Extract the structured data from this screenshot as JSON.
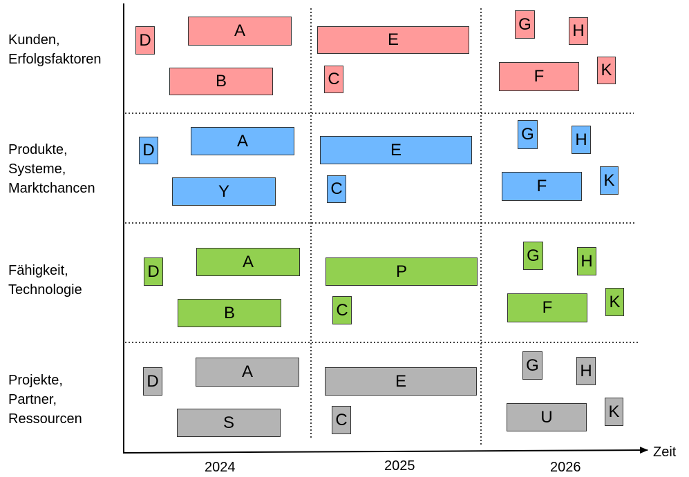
{
  "lanes": [
    {
      "label_lines": [
        "Kunden,",
        "Erfolgsfaktoren"
      ],
      "color": "#ff9a9a"
    },
    {
      "label_lines": [
        "Produkte,",
        "Systeme,",
        "Marktchancen"
      ],
      "color": "#6fb8ff"
    },
    {
      "label_lines": [
        "Fähigkeit,",
        "Technologie"
      ],
      "color": "#92d050"
    },
    {
      "label_lines": [
        "Projekte,",
        "Partner,",
        "Ressourcen"
      ],
      "color": "#b4b4b4"
    }
  ],
  "years": [
    "2024",
    "2025",
    "2026"
  ],
  "axis_label": "Zeit",
  "items": [
    {
      "lane": 0,
      "label": "D"
    },
    {
      "lane": 0,
      "label": "A"
    },
    {
      "lane": 0,
      "label": "B"
    },
    {
      "lane": 0,
      "label": "E"
    },
    {
      "lane": 0,
      "label": "C"
    },
    {
      "lane": 0,
      "label": "G"
    },
    {
      "lane": 0,
      "label": "H"
    },
    {
      "lane": 0,
      "label": "F"
    },
    {
      "lane": 0,
      "label": "K"
    },
    {
      "lane": 1,
      "label": "D"
    },
    {
      "lane": 1,
      "label": "A"
    },
    {
      "lane": 1,
      "label": "Y"
    },
    {
      "lane": 1,
      "label": "E"
    },
    {
      "lane": 1,
      "label": "C"
    },
    {
      "lane": 1,
      "label": "G"
    },
    {
      "lane": 1,
      "label": "H"
    },
    {
      "lane": 1,
      "label": "F"
    },
    {
      "lane": 1,
      "label": "K"
    },
    {
      "lane": 2,
      "label": "D"
    },
    {
      "lane": 2,
      "label": "A"
    },
    {
      "lane": 2,
      "label": "B"
    },
    {
      "lane": 2,
      "label": "P"
    },
    {
      "lane": 2,
      "label": "C"
    },
    {
      "lane": 2,
      "label": "G"
    },
    {
      "lane": 2,
      "label": "H"
    },
    {
      "lane": 2,
      "label": "F"
    },
    {
      "lane": 2,
      "label": "K"
    },
    {
      "lane": 3,
      "label": "D"
    },
    {
      "lane": 3,
      "label": "A"
    },
    {
      "lane": 3,
      "label": "S"
    },
    {
      "lane": 3,
      "label": "E"
    },
    {
      "lane": 3,
      "label": "C"
    },
    {
      "lane": 3,
      "label": "G"
    },
    {
      "lane": 3,
      "label": "H"
    },
    {
      "lane": 3,
      "label": "U"
    },
    {
      "lane": 3,
      "label": "K"
    }
  ]
}
